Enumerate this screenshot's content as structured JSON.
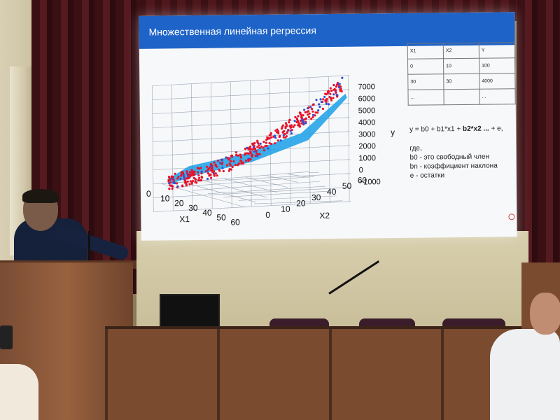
{
  "slide": {
    "title": "Множественная линейная регрессия",
    "plot": {
      "y_axis_label": "y",
      "y_ticks": [
        "7000",
        "6000",
        "5000",
        "4000",
        "3000",
        "2000",
        "1000",
        "0",
        "−1000"
      ],
      "x1_label": "X1",
      "x1_ticks": [
        "0",
        "10",
        "20",
        "30",
        "40",
        "50",
        "60"
      ],
      "x2_label": "X2",
      "x2_ticks": [
        "0",
        "10",
        "20",
        "30",
        "40",
        "50",
        "60"
      ],
      "colors": {
        "points": "#e8132b",
        "plane": "#1aa0e6",
        "grid": "#9aa6b4"
      }
    },
    "table": {
      "headers": [
        "X1",
        "X2",
        "Y"
      ],
      "rows": [
        [
          "0",
          "10",
          "100"
        ],
        [
          "30",
          "30",
          "4000"
        ],
        [
          "...",
          "",
          "..."
        ]
      ]
    },
    "formula": {
      "main_prefix": "y = b0 + b1*x1 + ",
      "main_bold": "b2*x2 ...",
      "main_suffix": "+ e,",
      "where": "где,",
      "b0": "b0 - это свободный член",
      "bn": "bn - коэффициент наклона",
      "e": "e - остатки"
    }
  },
  "colors": {
    "header": "#1e63c8",
    "screen": "#f7f8fa"
  }
}
